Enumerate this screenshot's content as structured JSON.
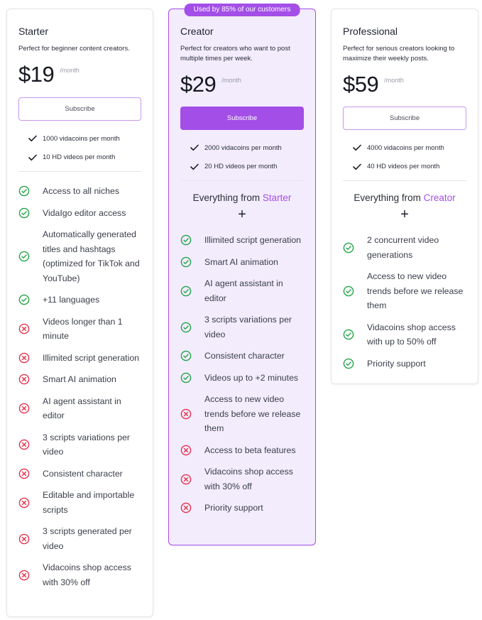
{
  "colors": {
    "accent": "#a44ee8",
    "success": "#22a447",
    "danger": "#e5324b"
  },
  "plans": [
    {
      "name": "Starter",
      "description": "Perfect for beginner content creators.",
      "price": "$19",
      "period": "/month",
      "button": "Subscribe",
      "quotas": [
        "1000 vidacoins per month",
        "10 HD videos per month"
      ],
      "features": [
        {
          "text": "Access to all niches",
          "included": true
        },
        {
          "text": "VidaIgo editor access",
          "included": true
        },
        {
          "text": "Automatically generated titles and hashtags (optimized for TikTok and YouTube)",
          "included": true
        },
        {
          "text": "+11 languages",
          "included": true
        },
        {
          "text": "Videos longer than 1 minute",
          "included": false
        },
        {
          "text": "Illimited script generation",
          "included": false
        },
        {
          "text": "Smart AI animation",
          "included": false
        },
        {
          "text": "AI agent assistant in editor",
          "included": false
        },
        {
          "text": "3 scripts variations per video",
          "included": false
        },
        {
          "text": "Consistent character",
          "included": false
        },
        {
          "text": "Editable and importable scripts",
          "included": false
        },
        {
          "text": "3 scripts generated per video",
          "included": false
        },
        {
          "text": "Vidacoins shop access with 30% off",
          "included": false
        }
      ]
    },
    {
      "name": "Creator",
      "badge": "Used by 85% of our customers",
      "description": "Perfect for creators who want to post multiple times per week.",
      "price": "$29",
      "period": "/month",
      "button": "Subscribe",
      "quotas": [
        "2000 vidacoins per month",
        "20 HD videos per month"
      ],
      "from_prefix": "Everything from",
      "from_plan": "Starter",
      "plus": "+",
      "features": [
        {
          "text": "Illimited script generation",
          "included": true
        },
        {
          "text": "Smart AI animation",
          "included": true
        },
        {
          "text": "AI agent assistant in editor",
          "included": true
        },
        {
          "text": "3 scripts variations per video",
          "included": true
        },
        {
          "text": "Consistent character",
          "included": true
        },
        {
          "text": "Videos up to +2 minutes",
          "included": true
        },
        {
          "text": "Access to new video trends before we release them",
          "included": false
        },
        {
          "text": "Access to beta features",
          "included": false
        },
        {
          "text": "Vidacoins shop access with 30% off",
          "included": false
        },
        {
          "text": "Priority support",
          "included": false
        }
      ]
    },
    {
      "name": "Professional",
      "description": "Perfect for serious creators looking to maximize their weekly posts.",
      "price": "$59",
      "period": "/month",
      "button": "Subscribe",
      "quotas": [
        "4000 vidacoins per month",
        "40 HD videos per month"
      ],
      "from_prefix": "Everything from",
      "from_plan": "Creator",
      "plus": "+",
      "features": [
        {
          "text": "2 concurrent video generations",
          "included": true
        },
        {
          "text": "Access to new video trends before we release them",
          "included": true
        },
        {
          "text": "Vidacoins shop access with up to 50% off",
          "included": true
        },
        {
          "text": "Priority support",
          "included": true
        }
      ]
    }
  ]
}
